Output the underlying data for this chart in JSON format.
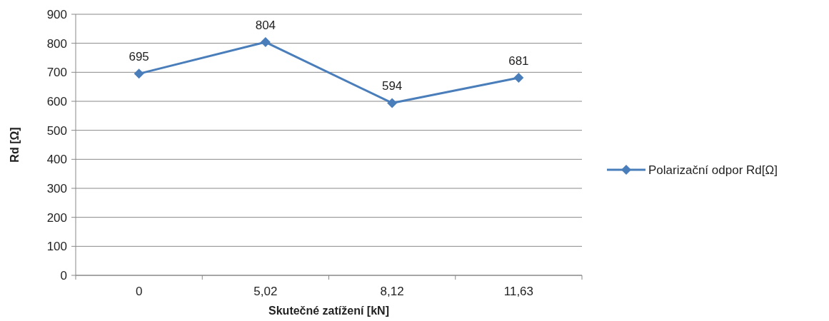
{
  "chart_data": {
    "type": "line",
    "xlabel": "Skutečné zatížení [kN]",
    "ylabel": "Rd [Ω]",
    "categories": [
      "0",
      "5,02",
      "8,12",
      "11,63"
    ],
    "series": [
      {
        "name": "Polarizační odpor Rd[Ω]",
        "color": "#4a7ebb",
        "values": [
          695,
          804,
          594,
          681
        ]
      }
    ],
    "ylim": [
      0,
      900
    ],
    "yticks": [
      0,
      100,
      200,
      300,
      400,
      500,
      600,
      700,
      800,
      900
    ],
    "grid": "y",
    "legend": "right",
    "marker": "diamond",
    "line_style": "solid",
    "data_labels": true
  }
}
